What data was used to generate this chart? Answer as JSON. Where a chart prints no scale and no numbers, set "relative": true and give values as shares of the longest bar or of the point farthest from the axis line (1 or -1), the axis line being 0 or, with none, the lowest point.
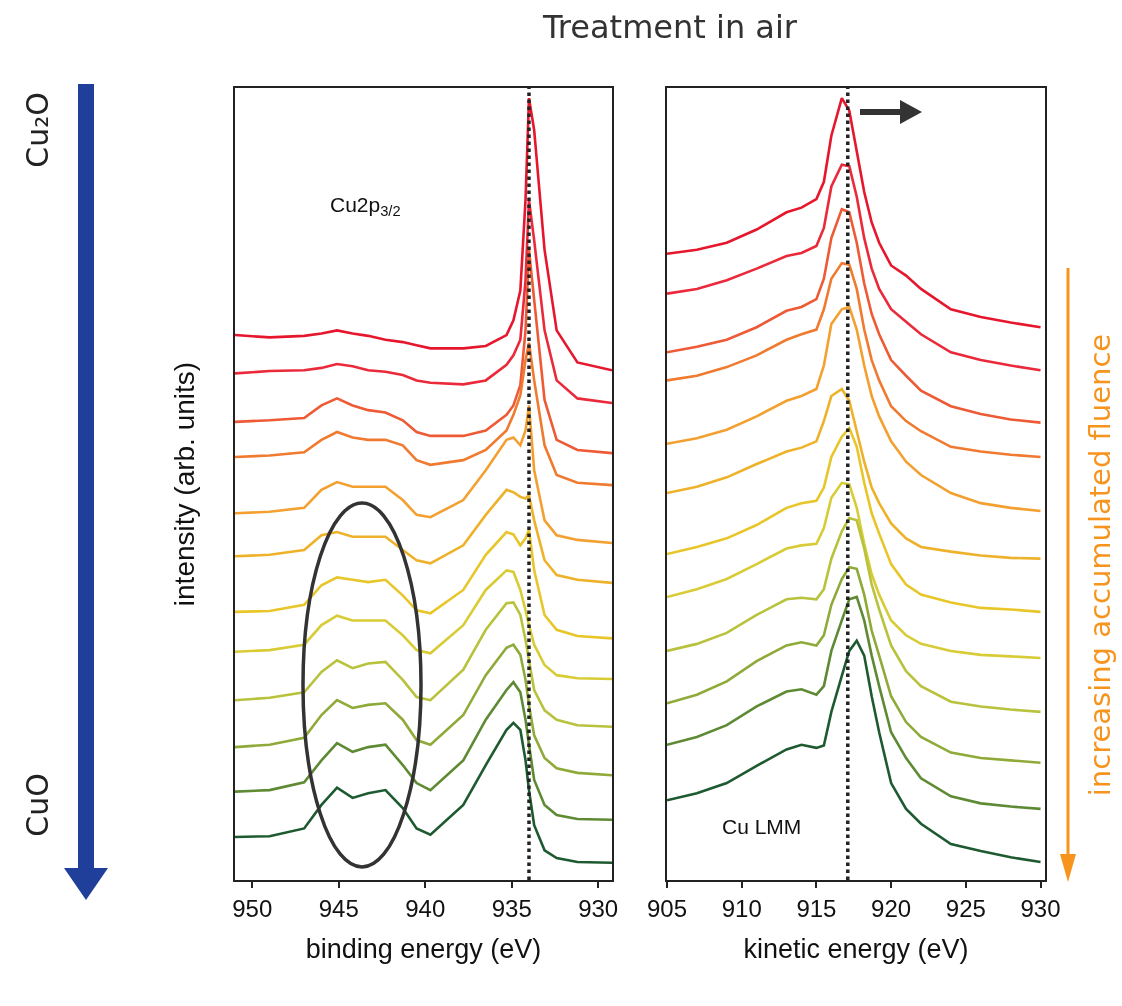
{
  "chart_data": [
    {
      "type": "line",
      "title": "Treatment in air",
      "xlabel": "binding energy (eV)",
      "ylabel": "intensity (arb. units)",
      "relative": true,
      "annotations": [
        "Cu₂O",
        "CuO",
        "Cu2p$_{3/2}$"
      ],
      "xlim": [
        951,
        929.2
      ],
      "xticks": [
        950,
        945,
        940,
        935,
        930
      ],
      "ref_lines": [
        {
          "axis": "x",
          "value": 934.0,
          "line_style": "dotted",
          "color": "#222222"
        }
      ],
      "x": [
        951,
        949,
        947,
        946,
        945.1,
        944.2,
        943.3,
        942.3,
        941.3,
        940.5,
        939.7,
        937.8,
        936.5,
        935.3,
        934.9,
        934.5,
        934.2,
        934.0,
        933.7,
        933.1,
        932.4,
        931.2,
        929.2
      ],
      "series": [
        {
          "color": "#e6162d",
          "values": [
            0.697,
            0.694,
            0.696,
            0.699,
            0.703,
            0.699,
            0.696,
            0.691,
            0.688,
            0.684,
            0.68,
            0.68,
            0.683,
            0.697,
            0.716,
            0.754,
            0.87,
            1,
            0.959,
            0.806,
            0.703,
            0.662,
            0.652
          ]
        },
        {
          "color": "#ea2a3a",
          "values": [
            0.648,
            0.651,
            0.652,
            0.655,
            0.66,
            0.657,
            0.652,
            0.65,
            0.646,
            0.639,
            0.636,
            0.634,
            0.639,
            0.659,
            0.671,
            0.691,
            0.767,
            0.87,
            0.818,
            0.703,
            0.639,
            0.616,
            0.61
          ]
        },
        {
          "color": "#ee5a35",
          "values": [
            0.586,
            0.588,
            0.591,
            0.607,
            0.616,
            0.607,
            0.601,
            0.598,
            0.588,
            0.573,
            0.568,
            0.568,
            0.575,
            0.595,
            0.607,
            0.633,
            0.703,
            0.806,
            0.742,
            0.614,
            0.563,
            0.55,
            0.546
          ]
        },
        {
          "color": "#f07a30",
          "values": [
            0.541,
            0.543,
            0.547,
            0.563,
            0.573,
            0.566,
            0.563,
            0.563,
            0.556,
            0.537,
            0.531,
            0.537,
            0.55,
            0.575,
            0.595,
            0.62,
            0.665,
            0.687,
            0.639,
            0.556,
            0.518,
            0.508,
            0.505
          ]
        },
        {
          "color": "#f3a030",
          "values": [
            0.469,
            0.471,
            0.476,
            0.499,
            0.509,
            0.503,
            0.503,
            0.503,
            0.486,
            0.467,
            0.464,
            0.486,
            0.524,
            0.563,
            0.566,
            0.556,
            0.575,
            0.607,
            0.524,
            0.46,
            0.441,
            0.435,
            0.431
          ]
        },
        {
          "color": "#eeb22a",
          "values": [
            0.414,
            0.416,
            0.422,
            0.441,
            0.445,
            0.439,
            0.439,
            0.439,
            0.422,
            0.409,
            0.405,
            0.428,
            0.467,
            0.499,
            0.496,
            0.49,
            0.488,
            0.492,
            0.46,
            0.409,
            0.39,
            0.384,
            0.38
          ]
        },
        {
          "color": "#e8c62a",
          "values": [
            0.343,
            0.344,
            0.352,
            0.377,
            0.387,
            0.384,
            0.381,
            0.384,
            0.364,
            0.345,
            0.341,
            0.371,
            0.416,
            0.445,
            0.442,
            0.428,
            0.437,
            0.448,
            0.396,
            0.339,
            0.32,
            0.312,
            0.309
          ]
        },
        {
          "color": "#d8cc36",
          "values": [
            0.292,
            0.294,
            0.301,
            0.326,
            0.338,
            0.332,
            0.332,
            0.332,
            0.313,
            0.294,
            0.29,
            0.326,
            0.371,
            0.396,
            0.394,
            0.371,
            0.345,
            0.326,
            0.301,
            0.275,
            0.262,
            0.258,
            0.257
          ]
        },
        {
          "color": "#b8c23c",
          "values": [
            0.23,
            0.233,
            0.24,
            0.266,
            0.281,
            0.271,
            0.277,
            0.279,
            0.256,
            0.234,
            0.23,
            0.269,
            0.32,
            0.354,
            0.355,
            0.339,
            0.307,
            0.281,
            0.243,
            0.217,
            0.205,
            0.198,
            0.196
          ]
        },
        {
          "color": "#8faa38",
          "values": [
            0.17,
            0.173,
            0.182,
            0.211,
            0.23,
            0.22,
            0.224,
            0.226,
            0.205,
            0.179,
            0.173,
            0.211,
            0.262,
            0.297,
            0.301,
            0.288,
            0.256,
            0.224,
            0.185,
            0.156,
            0.143,
            0.137,
            0.134
          ]
        },
        {
          "color": "#5e8a34",
          "values": [
            0.113,
            0.115,
            0.125,
            0.153,
            0.175,
            0.164,
            0.17,
            0.173,
            0.147,
            0.124,
            0.115,
            0.153,
            0.205,
            0.243,
            0.253,
            0.24,
            0.205,
            0.173,
            0.128,
            0.096,
            0.083,
            0.078,
            0.077
          ]
        },
        {
          "color": "#1e5a30",
          "values": [
            0.055,
            0.056,
            0.066,
            0.096,
            0.118,
            0.105,
            0.111,
            0.115,
            0.092,
            0.066,
            0.058,
            0.096,
            0.147,
            0.192,
            0.201,
            0.192,
            0.153,
            0.115,
            0.07,
            0.038,
            0.028,
            0.023,
            0.022
          ]
        }
      ]
    },
    {
      "type": "line",
      "xlabel": "kinetic energy (eV)",
      "relative": true,
      "annotations": [
        "Cu LMM",
        "increasing accumulated fluence"
      ],
      "xlim": [
        905,
        930.3
      ],
      "xticks": [
        905,
        910,
        915,
        920,
        925,
        930
      ],
      "ref_lines": [
        {
          "axis": "x",
          "value": 917.1,
          "line_style": "dotted",
          "color": "#222222"
        }
      ],
      "x": [
        905,
        907,
        909,
        911,
        913,
        914,
        915,
        915.5,
        916,
        916.7,
        917.2,
        917.7,
        918.2,
        918.7,
        919.2,
        920,
        921,
        922,
        924,
        926,
        928,
        930
      ],
      "series": [
        {
          "color": "#e6162d",
          "values": [
            0.801,
            0.806,
            0.815,
            0.832,
            0.854,
            0.86,
            0.871,
            0.893,
            0.952,
            1,
            0.984,
            0.932,
            0.88,
            0.841,
            0.815,
            0.786,
            0.773,
            0.756,
            0.73,
            0.72,
            0.713,
            0.707
          ]
        },
        {
          "color": "#ea2a3a",
          "values": [
            0.75,
            0.756,
            0.767,
            0.782,
            0.798,
            0.802,
            0.811,
            0.834,
            0.887,
            0.915,
            0.913,
            0.874,
            0.821,
            0.782,
            0.756,
            0.73,
            0.714,
            0.698,
            0.675,
            0.665,
            0.658,
            0.652
          ]
        },
        {
          "color": "#ee5a35",
          "values": [
            0.675,
            0.682,
            0.691,
            0.707,
            0.728,
            0.733,
            0.743,
            0.769,
            0.821,
            0.858,
            0.854,
            0.815,
            0.763,
            0.724,
            0.698,
            0.665,
            0.645,
            0.626,
            0.606,
            0.596,
            0.589,
            0.585
          ]
        },
        {
          "color": "#f07a30",
          "values": [
            0.639,
            0.645,
            0.656,
            0.671,
            0.691,
            0.698,
            0.704,
            0.73,
            0.769,
            0.789,
            0.787,
            0.756,
            0.704,
            0.665,
            0.639,
            0.606,
            0.587,
            0.574,
            0.554,
            0.548,
            0.544,
            0.541
          ]
        },
        {
          "color": "#f3a030",
          "values": [
            0.558,
            0.565,
            0.576,
            0.593,
            0.613,
            0.619,
            0.628,
            0.658,
            0.711,
            0.73,
            0.733,
            0.704,
            0.658,
            0.619,
            0.593,
            0.561,
            0.535,
            0.518,
            0.495,
            0.482,
            0.476,
            0.472
          ]
        },
        {
          "color": "#eeb22a",
          "values": [
            0.495,
            0.503,
            0.515,
            0.532,
            0.548,
            0.553,
            0.561,
            0.587,
            0.619,
            0.628,
            0.613,
            0.574,
            0.535,
            0.502,
            0.482,
            0.456,
            0.437,
            0.426,
            0.42,
            0.415,
            0.412,
            0.411
          ]
        },
        {
          "color": "#e8c62a",
          "values": [
            0.417,
            0.426,
            0.437,
            0.454,
            0.476,
            0.482,
            0.485,
            0.502,
            0.541,
            0.567,
            0.578,
            0.554,
            0.508,
            0.469,
            0.443,
            0.404,
            0.378,
            0.365,
            0.355,
            0.348,
            0.346,
            0.343
          ]
        },
        {
          "color": "#d8cc36",
          "values": [
            0.362,
            0.372,
            0.385,
            0.404,
            0.424,
            0.428,
            0.43,
            0.45,
            0.489,
            0.508,
            0.506,
            0.476,
            0.43,
            0.391,
            0.365,
            0.332,
            0.313,
            0.302,
            0.293,
            0.288,
            0.286,
            0.284
          ]
        },
        {
          "color": "#b8c23c",
          "values": [
            0.293,
            0.302,
            0.316,
            0.339,
            0.359,
            0.361,
            0.359,
            0.372,
            0.411,
            0.446,
            0.463,
            0.46,
            0.424,
            0.378,
            0.346,
            0.3,
            0.267,
            0.248,
            0.228,
            0.222,
            0.218,
            0.215
          ]
        },
        {
          "color": "#8faa38",
          "values": [
            0.226,
            0.237,
            0.254,
            0.28,
            0.3,
            0.304,
            0.3,
            0.313,
            0.352,
            0.385,
            0.4,
            0.398,
            0.365,
            0.319,
            0.287,
            0.235,
            0.202,
            0.183,
            0.163,
            0.156,
            0.153,
            0.15
          ]
        },
        {
          "color": "#5e8a34",
          "values": [
            0.173,
            0.183,
            0.198,
            0.222,
            0.241,
            0.244,
            0.237,
            0.248,
            0.293,
            0.332,
            0.359,
            0.362,
            0.332,
            0.287,
            0.248,
            0.189,
            0.156,
            0.13,
            0.107,
            0.098,
            0.094,
            0.091
          ]
        },
        {
          "color": "#1e5a30",
          "values": [
            0.102,
            0.111,
            0.124,
            0.146,
            0.167,
            0.173,
            0.169,
            0.172,
            0.215,
            0.261,
            0.293,
            0.306,
            0.287,
            0.235,
            0.189,
            0.124,
            0.091,
            0.072,
            0.046,
            0.037,
            0.029,
            0.023
          ]
        }
      ]
    }
  ]
}
